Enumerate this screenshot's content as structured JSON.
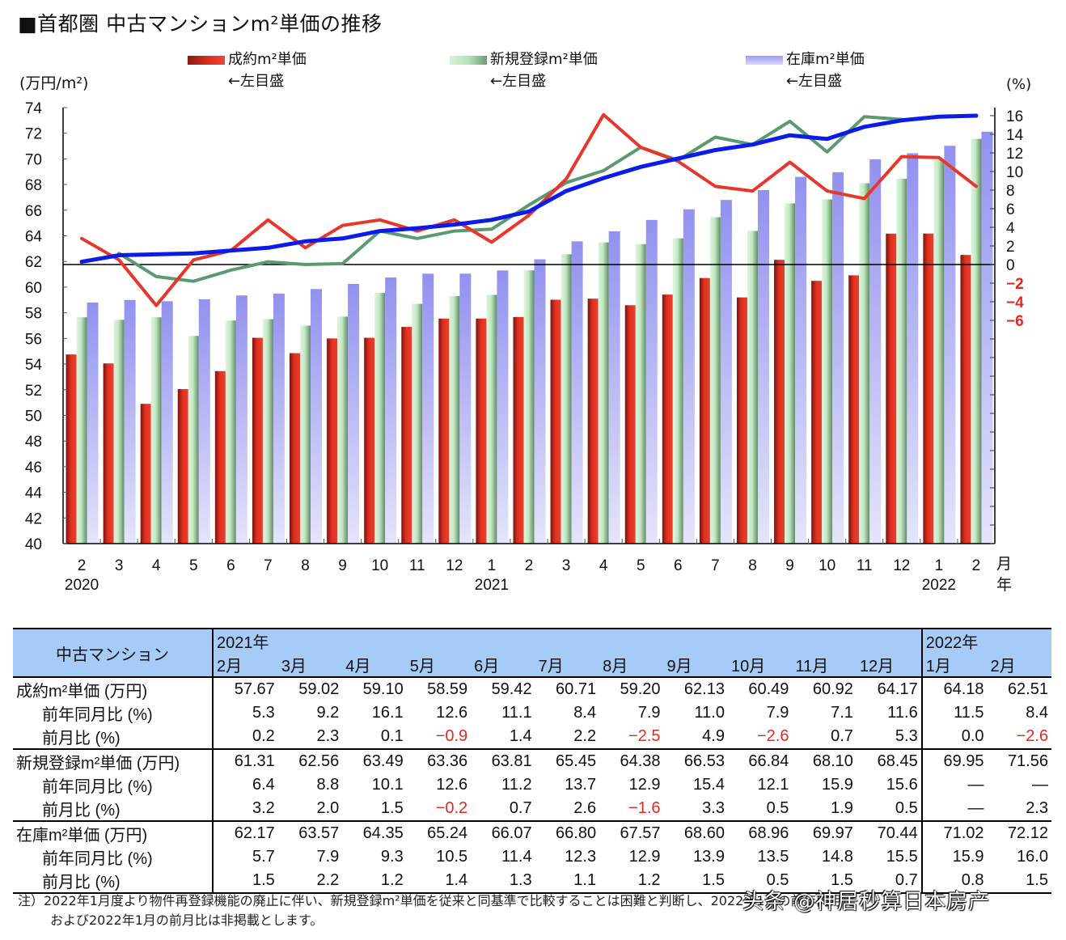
{
  "title": "■首都圏 中古マンションm²単価の推移",
  "legend": [
    {
      "label": "成約m²単価",
      "sub": "←左目盛",
      "color": "#e03020"
    },
    {
      "label": "新規登録m²単価",
      "sub": "←左目盛",
      "color": "#9fcf9f"
    },
    {
      "label": "在庫m²単価",
      "sub": "←左目盛",
      "color": "#9d9cf2"
    }
  ],
  "axes": {
    "left_unit": "(万円/m²)",
    "right_unit": "(%)",
    "left_ticks": [
      74,
      72,
      70,
      68,
      66,
      64,
      62,
      60,
      58,
      56,
      54,
      52,
      50,
      48,
      46,
      44,
      42,
      40
    ],
    "right_ticks": [
      16,
      14,
      12,
      10,
      8,
      6,
      4,
      2,
      0,
      -2,
      -4,
      -6
    ],
    "x_month_unit": "月",
    "x_year_unit": "年"
  },
  "chart_data": {
    "type": "bar+line",
    "title": "首都圏 中古マンションm²単価の推移",
    "categories": [
      "2020/2",
      "2020/3",
      "2020/4",
      "2020/5",
      "2020/6",
      "2020/7",
      "2020/8",
      "2020/9",
      "2020/10",
      "2020/11",
      "2020/12",
      "2021/1",
      "2021/2",
      "2021/3",
      "2021/4",
      "2021/5",
      "2021/6",
      "2021/7",
      "2021/8",
      "2021/9",
      "2021/10",
      "2021/11",
      "2021/12",
      "2022/1",
      "2022/2"
    ],
    "x_tick_labels": [
      "2",
      "3",
      "4",
      "5",
      "6",
      "7",
      "8",
      "9",
      "10",
      "11",
      "12",
      "1",
      "2",
      "3",
      "4",
      "5",
      "6",
      "7",
      "8",
      "9",
      "10",
      "11",
      "12",
      "1",
      "2"
    ],
    "x_year_labels": [
      {
        "index": 0,
        "label": "2020"
      },
      {
        "index": 11,
        "label": "2021"
      },
      {
        "index": 23,
        "label": "2022"
      }
    ],
    "ylabel_left": "万円/m²",
    "ylim_left": [
      40,
      74
    ],
    "ylabel_right": "%",
    "ylim_right": [
      -6,
      16
    ],
    "series": [
      {
        "name": "成約m²単価",
        "type": "bar",
        "axis": "left",
        "color": "#e03020",
        "values": [
          54.75,
          54.05,
          50.9,
          52.05,
          53.45,
          56.05,
          54.85,
          56.0,
          56.05,
          56.9,
          57.55,
          57.55,
          57.67,
          59.02,
          59.1,
          58.59,
          59.42,
          60.71,
          59.2,
          62.13,
          60.49,
          60.92,
          64.17,
          64.18,
          62.51
        ]
      },
      {
        "name": "新規登録m²単価",
        "type": "bar",
        "axis": "left",
        "color": "#b8e3b8",
        "values": [
          57.65,
          57.45,
          57.65,
          56.2,
          57.4,
          57.5,
          57.0,
          57.7,
          59.55,
          58.7,
          59.3,
          59.4,
          61.31,
          62.56,
          63.49,
          63.36,
          63.81,
          65.45,
          64.38,
          66.53,
          66.84,
          68.1,
          68.45,
          69.95,
          71.56
        ]
      },
      {
        "name": "在庫m²単価",
        "type": "bar",
        "axis": "left",
        "color": "#9d9cf2",
        "values": [
          58.8,
          59.0,
          58.9,
          59.05,
          59.35,
          59.5,
          59.85,
          60.25,
          60.75,
          61.05,
          61.05,
          61.3,
          62.17,
          63.57,
          64.35,
          65.24,
          66.07,
          66.8,
          67.57,
          68.6,
          68.96,
          69.97,
          70.44,
          71.02,
          72.12
        ]
      },
      {
        "name": "成約m²単価 前年同月比",
        "type": "line",
        "axis": "right",
        "color": "#e8362a",
        "values": [
          2.8,
          0.5,
          -4.4,
          0.5,
          1.5,
          4.8,
          1.8,
          4.2,
          4.8,
          3.6,
          4.8,
          2.4,
          5.3,
          9.2,
          16.1,
          12.6,
          11.1,
          8.4,
          7.9,
          11.0,
          7.9,
          7.1,
          11.6,
          11.5,
          8.4
        ]
      },
      {
        "name": "新規登録m²単価 前年同月比",
        "type": "line",
        "axis": "right",
        "color": "#5a9a6e",
        "values": [
          null,
          1.2,
          -1.3,
          -1.8,
          -0.6,
          0.3,
          0.0,
          0.1,
          3.6,
          2.8,
          3.6,
          3.8,
          6.4,
          8.8,
          10.1,
          12.6,
          11.2,
          13.7,
          12.9,
          15.4,
          12.1,
          15.9,
          15.6,
          null,
          null
        ]
      },
      {
        "name": "在庫m²単価 前年同月比",
        "type": "line",
        "axis": "right",
        "color": "#0b1be8",
        "values": [
          0.3,
          1.0,
          1.1,
          1.2,
          1.5,
          1.8,
          2.5,
          2.8,
          3.6,
          3.9,
          4.3,
          4.8,
          5.7,
          7.9,
          9.3,
          10.5,
          11.4,
          12.3,
          12.9,
          13.9,
          13.5,
          14.8,
          15.5,
          15.9,
          16.0
        ]
      }
    ],
    "legend_position": "top",
    "grid": false,
    "zero_line_right_axis": true
  },
  "table": {
    "header_label": "中古マンション",
    "year_2021": "2021年",
    "year_2022": "2022年",
    "months": [
      "2月",
      "3月",
      "4月",
      "5月",
      "6月",
      "7月",
      "8月",
      "9月",
      "10月",
      "11月",
      "12月",
      "1月",
      "2月"
    ],
    "groups": [
      {
        "rows": [
          {
            "label": "成約m²単価 (万円)",
            "sub": false,
            "values": [
              "57.67",
              "59.02",
              "59.10",
              "58.59",
              "59.42",
              "60.71",
              "59.20",
              "62.13",
              "60.49",
              "60.92",
              "64.17",
              "64.18",
              "62.51"
            ]
          },
          {
            "label": "前年同月比 (%)",
            "sub": true,
            "values": [
              "5.3",
              "9.2",
              "16.1",
              "12.6",
              "11.1",
              "8.4",
              "7.9",
              "11.0",
              "7.9",
              "7.1",
              "11.6",
              "11.5",
              "8.4"
            ]
          },
          {
            "label": "前月比 (%)",
            "sub": true,
            "values": [
              "0.2",
              "2.3",
              "0.1",
              "−0.9",
              "1.4",
              "2.2",
              "−2.5",
              "4.9",
              "−2.6",
              "0.7",
              "5.3",
              "0.0",
              "−2.6"
            ]
          }
        ]
      },
      {
        "rows": [
          {
            "label": "新規登録m²単価 (万円)",
            "sub": false,
            "values": [
              "61.31",
              "62.56",
              "63.49",
              "63.36",
              "63.81",
              "65.45",
              "64.38",
              "66.53",
              "66.84",
              "68.10",
              "68.45",
              "69.95",
              "71.56"
            ]
          },
          {
            "label": "前年同月比 (%)",
            "sub": true,
            "values": [
              "6.4",
              "8.8",
              "10.1",
              "12.6",
              "11.2",
              "13.7",
              "12.9",
              "15.4",
              "12.1",
              "15.9",
              "15.6",
              "—",
              "—"
            ]
          },
          {
            "label": "前月比 (%)",
            "sub": true,
            "values": [
              "3.2",
              "2.0",
              "1.5",
              "−0.2",
              "0.7",
              "2.6",
              "−1.6",
              "3.3",
              "0.5",
              "1.9",
              "0.5",
              "—",
              "2.3"
            ]
          }
        ]
      },
      {
        "rows": [
          {
            "label": "在庫m²単価 (万円)",
            "sub": false,
            "values": [
              "62.17",
              "63.57",
              "64.35",
              "65.24",
              "66.07",
              "66.80",
              "67.57",
              "68.60",
              "68.96",
              "69.97",
              "70.44",
              "71.02",
              "72.12"
            ]
          },
          {
            "label": "前年同月比 (%)",
            "sub": true,
            "values": [
              "5.7",
              "7.9",
              "9.3",
              "10.5",
              "11.4",
              "12.3",
              "12.9",
              "13.9",
              "13.5",
              "14.8",
              "15.5",
              "15.9",
              "16.0"
            ]
          },
          {
            "label": "前月比 (%)",
            "sub": true,
            "values": [
              "1.5",
              "2.2",
              "1.2",
              "1.4",
              "1.3",
              "1.1",
              "1.2",
              "1.5",
              "0.5",
              "1.5",
              "0.7",
              "0.8",
              "1.5"
            ]
          }
        ]
      }
    ]
  },
  "note": {
    "line1": "注）2022年1月度より物件再登録機能の廃止に伴い、新規登録m²単価を従来と同基準で比較することは困難と判断し、2022年1月の前年同月比",
    "line2": "および2022年1月の前月比は非掲載とします。"
  },
  "watermark": "头条 @神居秒算日本房产",
  "colors": {
    "red_bar": "#e03020",
    "green_bar": "#b8e3b8",
    "purple_bar": "#9d9cf2",
    "red_line": "#e8362a",
    "green_line": "#5a9a6e",
    "blue_line": "#0b1be8",
    "header_bg": "#a7cbf7",
    "negative_text": "#e02a20"
  }
}
